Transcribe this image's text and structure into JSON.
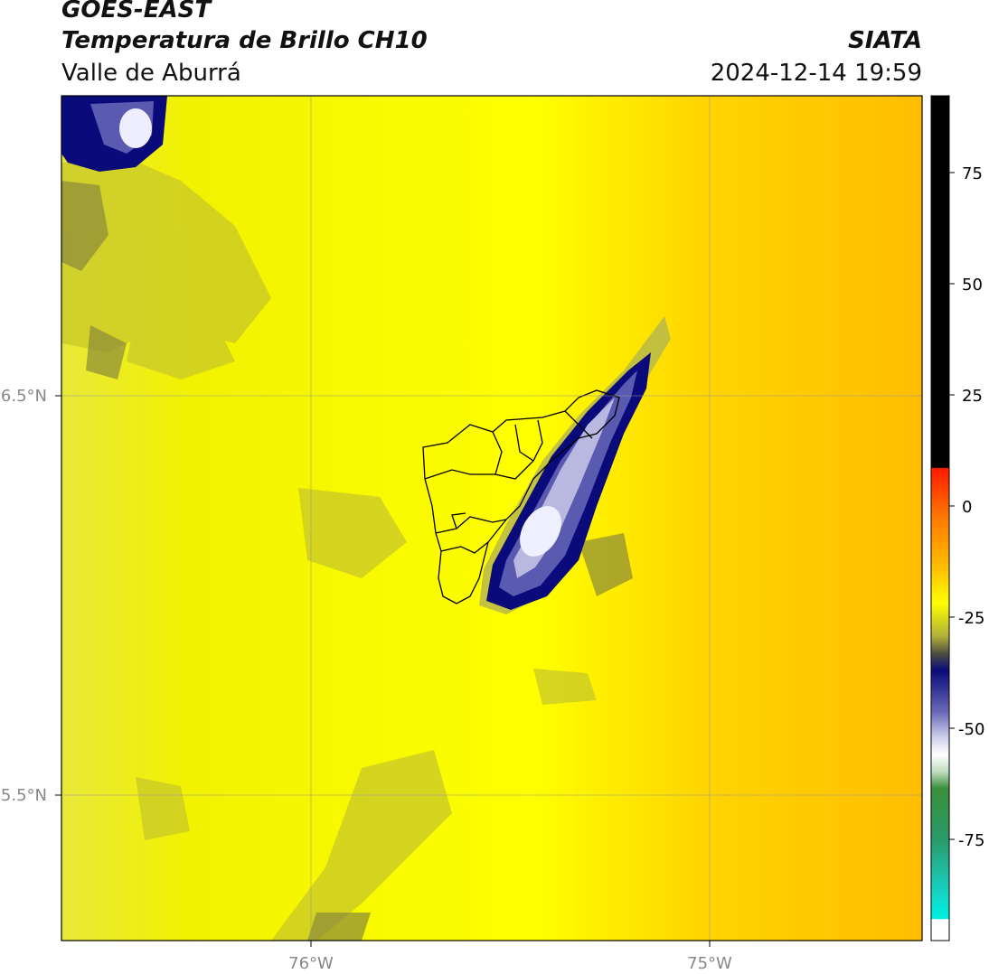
{
  "title": {
    "satellite": "GOES-EAST",
    "product": "Temperatura de Brillo CH10",
    "region": "Valle de Aburrá",
    "source": "SIATA",
    "datetime": "2024-12-14 19:59"
  },
  "axes": {
    "lon_labels": [
      "76°W",
      "75°W"
    ],
    "lat_labels": [
      "6.5°N",
      "5.5°N"
    ]
  },
  "colorbar": {
    "ticks": [
      "75",
      "50",
      "25",
      "0",
      "-25",
      "-50",
      "-75"
    ],
    "colors": {
      "warm": "#000000",
      "red": "#ff2a00",
      "orange": "#ff9a00",
      "yellow": "#ffff00",
      "olive": "#a9a93a",
      "navy": "#0a0a7a",
      "lavender": "#c0c0e6",
      "white": "#ffffff",
      "green": "#3a8f3a",
      "cyan": "#10e6d6"
    }
  },
  "map": {
    "background_colors": [
      "#ffff00",
      "#ffc400",
      "#e6e600"
    ],
    "cloud_colors": [
      "#0a0a7a",
      "#5a5ab0",
      "#c8c8ec",
      "#f4f4ff"
    ],
    "boundary_color": "#000000"
  }
}
